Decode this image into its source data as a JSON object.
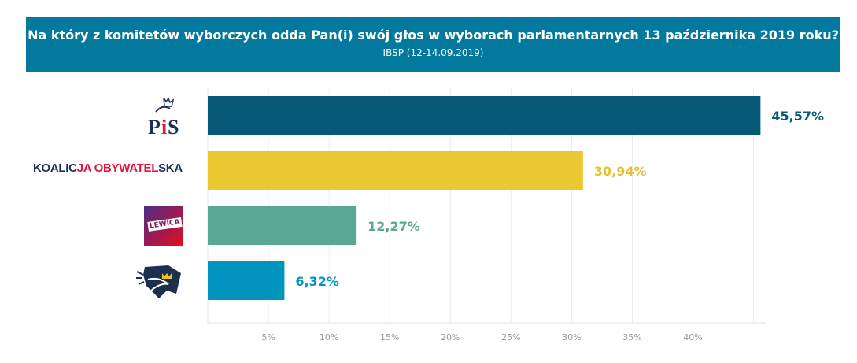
{
  "header": {
    "title": "Na który z komitetów wyborczych odda Pan(i) swój głos w wyborach parlamentarnych 13 października 2019 roku?",
    "subtitle": "IBSP (12-14.09.2019)"
  },
  "logos": {
    "pis": "PiS",
    "ko_a": "KOALIC",
    "ko_b": "JA OBYWATEL",
    "ko_c": "SKA",
    "lewica": "LEWICA"
  },
  "chart_data": {
    "type": "bar",
    "orientation": "horizontal",
    "title": "Na który z komitetów wyborczych odda Pan(i) swój głos w wyborach parlamentarnych 13 października 2019 roku?",
    "subtitle": "IBSP (12-14.09.2019)",
    "categories": [
      "PiS",
      "Koalicja Obywatelska",
      "Lewica",
      ""
    ],
    "values": [
      45.57,
      30.94,
      12.27,
      6.32
    ],
    "labels": [
      "45,57%",
      "30,94%",
      "12,27%",
      "6,32%"
    ],
    "colors": [
      "#065a78",
      "#ebc832",
      "#5aa893",
      "#0094be"
    ],
    "xticks": [
      5,
      10,
      15,
      20,
      25,
      30,
      35,
      40
    ],
    "xtick_labels": [
      "5%",
      "10%",
      "15%",
      "20%",
      "25%",
      "30%",
      "35%",
      "40%"
    ],
    "xlim": [
      0,
      46
    ],
    "grid": true
  }
}
